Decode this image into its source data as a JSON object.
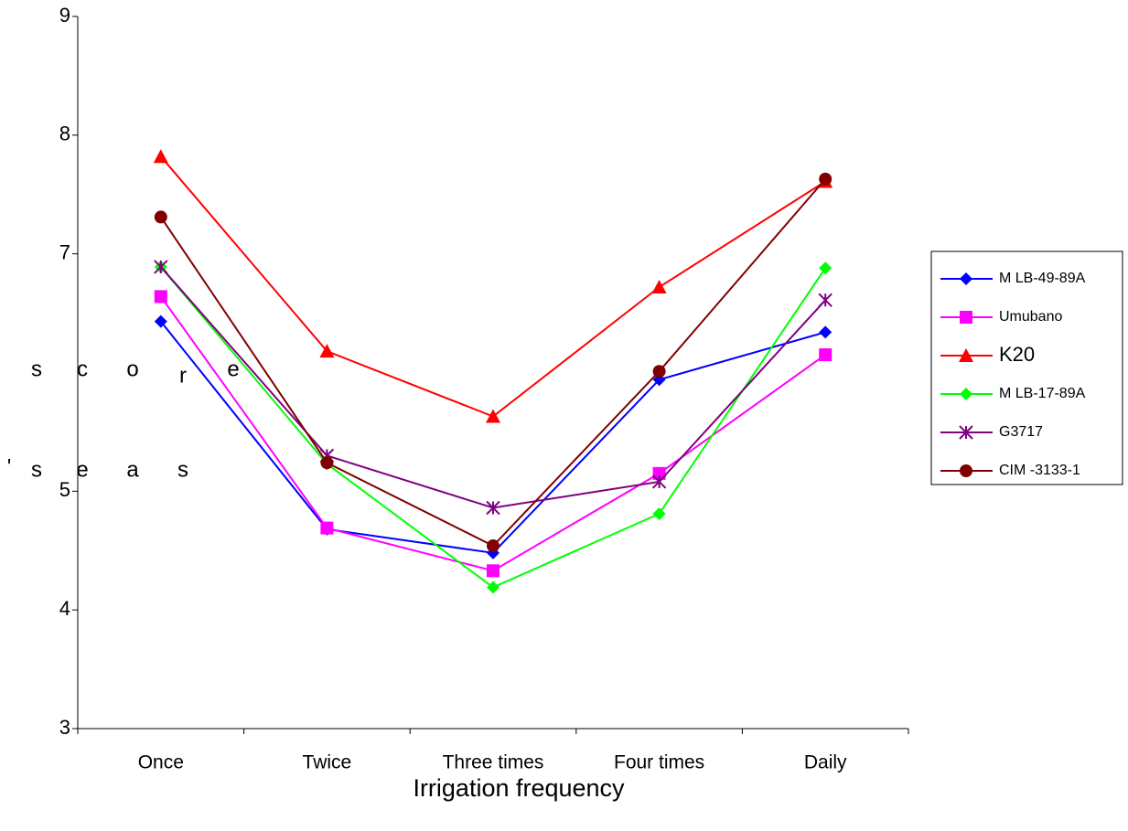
{
  "chart_data": {
    "type": "line",
    "xlabel": "Irrigation frequency",
    "ylabel_fragments": [
      [
        "s",
        "c",
        "o",
        "r",
        "e"
      ],
      [
        "'",
        "s",
        "e",
        "a",
        "s"
      ]
    ],
    "categories": [
      "Once",
      "Twice",
      "Three times",
      "Four times",
      "Daily"
    ],
    "ylim": [
      3,
      9
    ],
    "yticks": [
      3,
      4,
      5,
      7,
      8,
      9
    ],
    "legend": "right",
    "series": [
      {
        "name": "M LB-49-89A",
        "color": "#0000ff",
        "marker": "diamond",
        "values": [
          6.43,
          4.68,
          4.48,
          5.94,
          6.34
        ]
      },
      {
        "name": "Umubano",
        "color": "#ff00ff",
        "marker": "square",
        "values": [
          6.64,
          4.69,
          4.33,
          5.15,
          6.15
        ]
      },
      {
        "name": "K20",
        "color": "#ff0000",
        "marker": "triangle",
        "values": [
          7.82,
          6.18,
          5.63,
          6.72,
          7.61
        ]
      },
      {
        "name": "M LB-17-89A",
        "color": "#00ff00",
        "marker": "diamond",
        "values": [
          6.89,
          5.23,
          4.19,
          4.81,
          6.88
        ]
      },
      {
        "name": "G3717",
        "color": "#800080",
        "marker": "star",
        "values": [
          6.89,
          5.3,
          4.86,
          5.08,
          6.61
        ]
      },
      {
        "name": "CIM -3133-1",
        "color": "#800000",
        "marker": "circle",
        "values": [
          7.31,
          5.24,
          4.54,
          6.01,
          7.63
        ]
      }
    ]
  }
}
